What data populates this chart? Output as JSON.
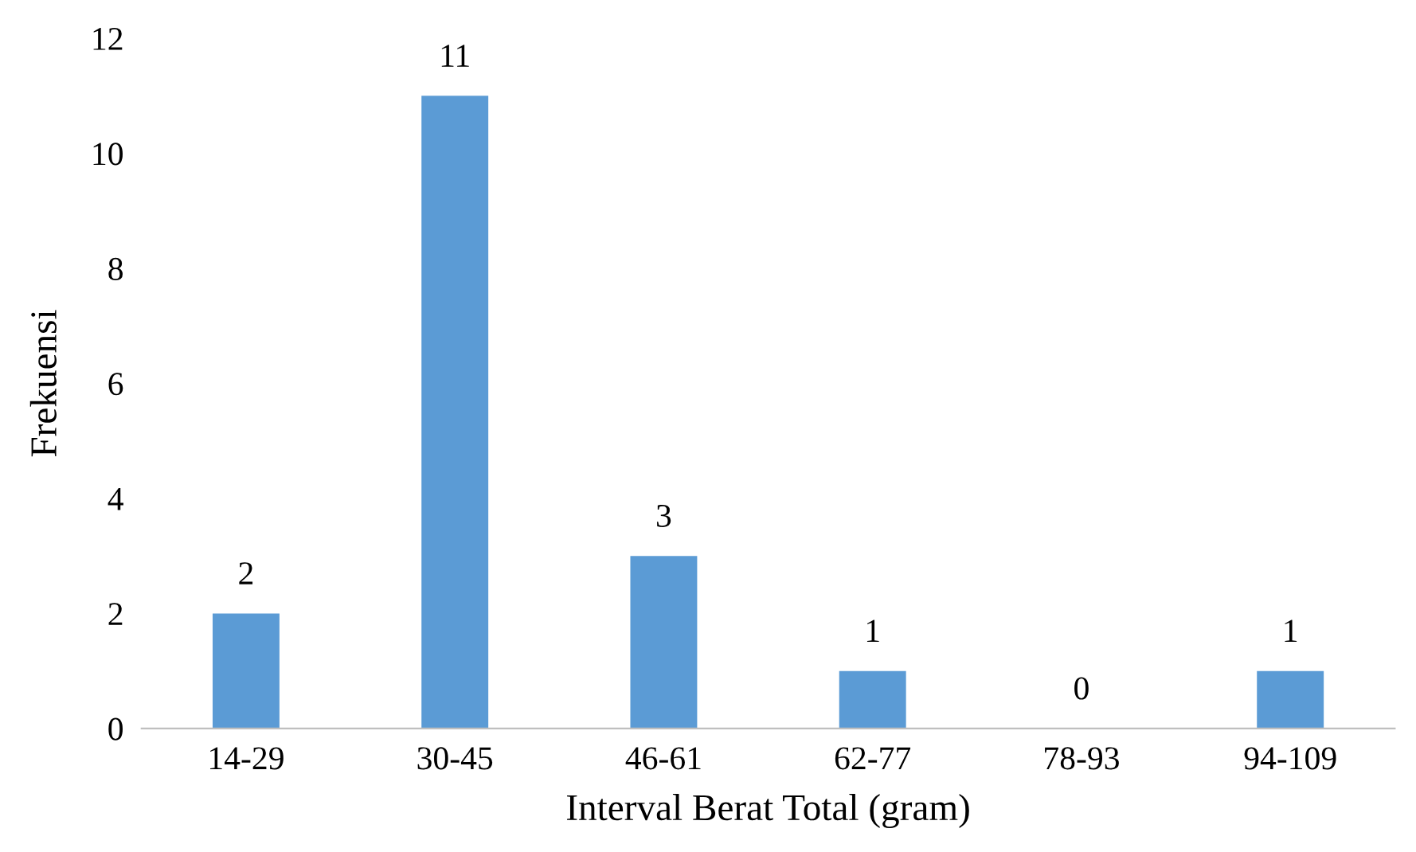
{
  "chart_data": {
    "type": "bar",
    "xlabel": "Interval Berat Total (gram)",
    "ylabel": "Frekuensi",
    "categories": [
      "14-29",
      "30-45",
      "46-61",
      "62-77",
      "78-93",
      "94-109"
    ],
    "values": [
      2,
      11,
      3,
      1,
      0,
      1
    ],
    "color": "#5b9bd5",
    "ylim": [
      0,
      12
    ],
    "yticks": [
      0,
      2,
      4,
      6,
      8,
      10,
      12
    ],
    "data_labels": true,
    "grid": false,
    "legend": false
  }
}
